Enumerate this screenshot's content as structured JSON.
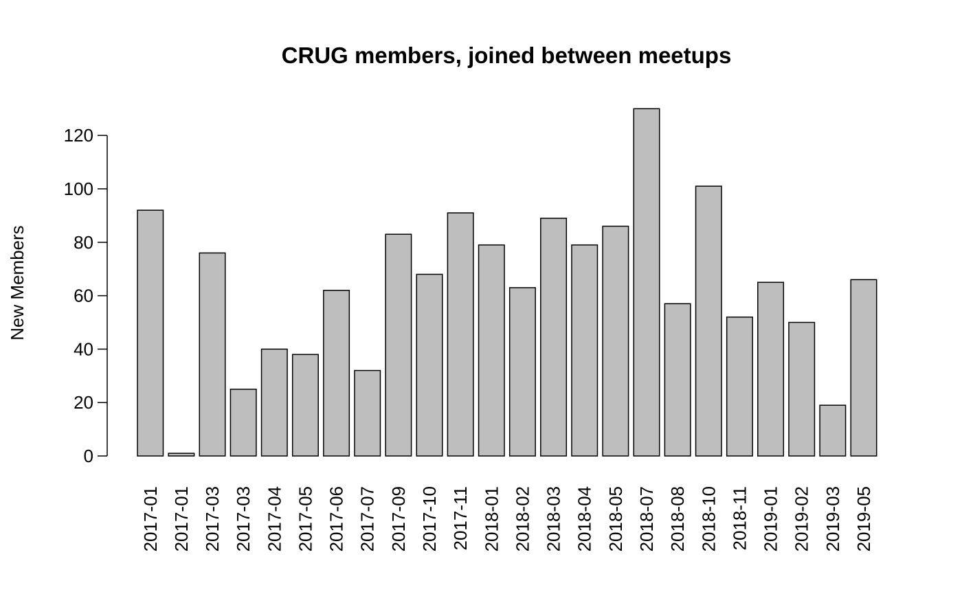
{
  "chart_data": {
    "type": "bar",
    "title": "CRUG members, joined between meetups",
    "xlabel": "",
    "ylabel": "New Members",
    "ylim": [
      0,
      130
    ],
    "yticks": [
      0,
      20,
      40,
      60,
      80,
      100,
      120
    ],
    "grid": false,
    "bar_color": "#bebebe",
    "bar_border_color": "#000000",
    "categories": [
      "2017-01",
      "2017-01",
      "2017-03",
      "2017-03",
      "2017-04",
      "2017-05",
      "2017-06",
      "2017-07",
      "2017-09",
      "2017-10",
      "2017-11",
      "2018-01",
      "2018-02",
      "2018-03",
      "2018-04",
      "2018-05",
      "2018-07",
      "2018-08",
      "2018-10",
      "2018-11",
      "2019-01",
      "2019-02",
      "2019-03",
      "2019-05"
    ],
    "values": [
      92,
      1,
      76,
      25,
      40,
      38,
      62,
      32,
      83,
      68,
      91,
      79,
      63,
      89,
      79,
      86,
      130,
      57,
      101,
      52,
      65,
      50,
      19,
      66
    ]
  }
}
